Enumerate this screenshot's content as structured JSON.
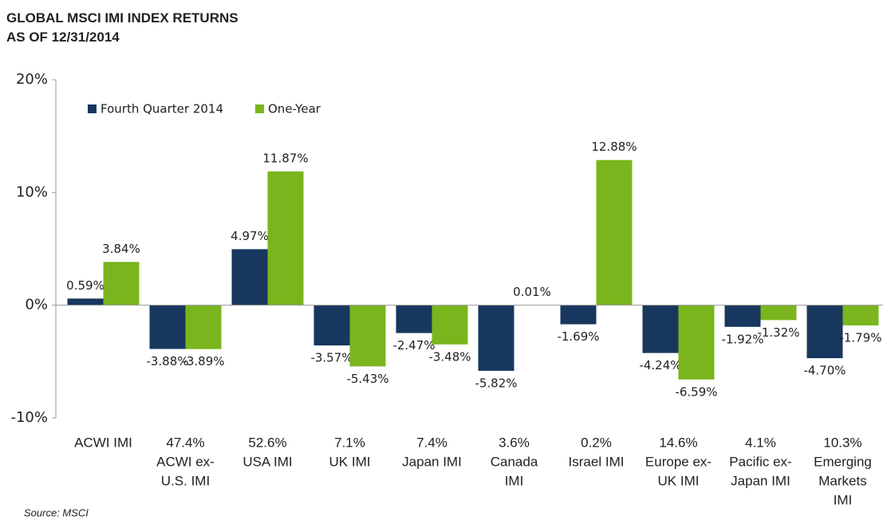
{
  "chart_data": {
    "type": "bar",
    "title": "GLOBAL MSCI IMI INDEX RETURNS",
    "subtitle": "AS OF 12/31/2014",
    "source": "Source: MSCI",
    "categories": [
      [
        "ACWI IMI"
      ],
      [
        "47.4%",
        "ACWI ex-",
        "U.S. IMI"
      ],
      [
        "52.6%",
        "USA IMI"
      ],
      [
        "7.1%",
        "UK IMI"
      ],
      [
        "7.4%",
        "Japan IMI"
      ],
      [
        "3.6%",
        "Canada",
        "IMI"
      ],
      [
        "0.2%",
        "Israel IMI"
      ],
      [
        "14.6%",
        "Europe ex-",
        "UK IMI"
      ],
      [
        "4.1%",
        "Pacific ex-",
        "Japan IMI"
      ],
      [
        "10.3%",
        "Emerging",
        "Markets",
        "IMI"
      ]
    ],
    "series": [
      {
        "name": "Fourth Quarter 2014",
        "color": "#17375e",
        "values": [
          0.59,
          -3.88,
          4.97,
          -3.57,
          -2.47,
          -5.82,
          -1.69,
          -4.24,
          -1.92,
          -4.7
        ],
        "value_labels": [
          "0.59%",
          "-3.88%",
          "4.97%",
          "-3.57%",
          "-2.47%",
          "-5.82%",
          "-1.69%",
          "-4.24%",
          "-1.92%",
          "-4.70%"
        ]
      },
      {
        "name": "One-Year",
        "color": "#7ab51d",
        "values": [
          3.84,
          -3.89,
          11.87,
          -5.43,
          -3.48,
          0.01,
          12.88,
          -6.59,
          -1.32,
          -1.79
        ],
        "value_labels": [
          "3.84%",
          "-3.89%",
          "11.87%",
          "-5.43%",
          "-3.48%",
          "0.01%",
          "12.88%",
          "-6.59%",
          "-1.32%",
          "-1.79%"
        ]
      }
    ],
    "ylim": [
      -10,
      20
    ],
    "yticks": [
      {
        "value": -10,
        "label": "-10%"
      },
      {
        "value": 0,
        "label": "0%"
      },
      {
        "value": 10,
        "label": "10%"
      },
      {
        "value": 20,
        "label": "20%"
      }
    ],
    "legend": "top-left"
  }
}
